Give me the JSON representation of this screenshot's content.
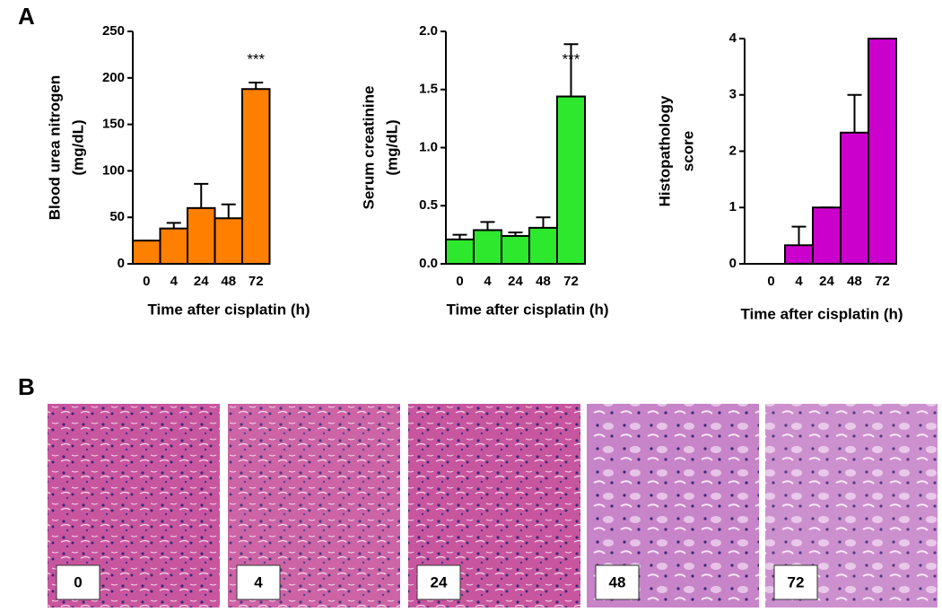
{
  "panel_labels": [
    "A",
    "B"
  ],
  "chart_data": [
    {
      "type": "bar",
      "ylabel": [
        "Blood urea nitrogen",
        "(mg/dL)"
      ],
      "xlabel": "Time after cisplatin (h)",
      "categories": [
        "0",
        "4",
        "24",
        "48",
        "72"
      ],
      "values": [
        25,
        38,
        60,
        49,
        188
      ],
      "errors": [
        0,
        6,
        26,
        15,
        7
      ],
      "color": "#ff7f00",
      "ylim": [
        0,
        250
      ],
      "yticks": [
        0,
        50,
        100,
        150,
        200,
        250
      ],
      "annotation": "***"
    },
    {
      "type": "bar",
      "ylabel": [
        "Serum creatinine",
        "(mg/dL)"
      ],
      "xlabel": "Time after cisplatin (h)",
      "categories": [
        "0",
        "4",
        "24",
        "48",
        "72"
      ],
      "values": [
        0.21,
        0.29,
        0.24,
        0.31,
        1.44
      ],
      "errors": [
        0.04,
        0.07,
        0.03,
        0.09,
        0.45
      ],
      "color": "#2ee82e",
      "ylim": [
        0,
        2
      ],
      "yticks": [
        {
          "value": 0,
          "label": "0.0"
        },
        0.5,
        {
          "value": 1,
          "label": "1.0"
        },
        1.5,
        {
          "value": 2,
          "label": "2.0"
        }
      ],
      "annotation": "***"
    },
    {
      "type": "bar",
      "ylabel": [
        "Histopathology",
        "score"
      ],
      "xlabel": "Time after cisplatin (h)",
      "categories": [
        "0",
        "4",
        "24",
        "48",
        "72"
      ],
      "values": [
        0,
        0.33,
        1,
        2.33,
        4
      ],
      "errors": [
        0,
        0.33,
        0,
        0.67,
        0
      ],
      "color": "#cc00cc",
      "ylim": [
        0,
        4
      ],
      "yticks": [
        0,
        1,
        2,
        3,
        4
      ]
    }
  ],
  "images": {
    "labels": [
      "0",
      "4",
      "24",
      "48",
      "72"
    ]
  }
}
